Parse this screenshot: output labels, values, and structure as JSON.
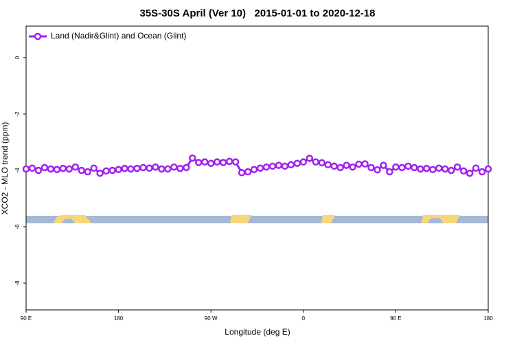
{
  "chart_data": {
    "type": "line",
    "title": "35S-30S April (Ver 10)   2015-01-01 to 2020-12-18",
    "xlabel": "Longitude (deg E)",
    "ylabel": "XCO2 - MLO trend (ppm)",
    "xlim": [
      90,
      540
    ],
    "ylim": [
      -8.95,
      1.12
    ],
    "xticks": [
      {
        "value": 90,
        "label": "90 E"
      },
      180,
      {
        "value": 270,
        "label": "90 W"
      },
      {
        "value": 360,
        "label": "0"
      },
      {
        "value": 450,
        "label": "90 E"
      },
      {
        "value": 540,
        "label": "180"
      }
    ],
    "yticks": [
      0,
      -2,
      -4,
      -6,
      -8
    ],
    "legend": "top-left",
    "x": [
      90,
      96,
      102,
      108,
      114,
      120,
      126,
      132,
      138,
      144,
      150,
      156,
      162,
      168,
      174,
      180,
      186,
      192,
      198,
      204,
      210,
      216,
      222,
      228,
      234,
      240,
      246,
      252,
      258,
      264,
      270,
      276,
      282,
      288,
      294,
      300,
      306,
      312,
      318,
      324,
      330,
      336,
      342,
      348,
      354,
      360,
      366,
      372,
      378,
      384,
      390,
      396,
      402,
      408,
      414,
      420,
      426,
      432,
      438,
      444,
      450,
      456,
      462,
      468,
      474,
      480,
      486,
      492,
      498,
      504,
      510,
      516,
      522,
      528,
      534,
      540
    ],
    "series": [
      {
        "name": "Land (Nadir&Glint) and Ocean (Glint)",
        "color": "#a020f0",
        "values": [
          -3.95,
          -3.92,
          -4.0,
          -3.9,
          -3.95,
          -3.97,
          -3.93,
          -3.95,
          -3.88,
          -4.0,
          -4.05,
          -3.92,
          -4.1,
          -4.02,
          -4.0,
          -3.97,
          -3.93,
          -3.95,
          -3.93,
          -3.9,
          -3.92,
          -3.88,
          -3.95,
          -3.95,
          -3.88,
          -3.93,
          -3.9,
          -3.56,
          -3.72,
          -3.7,
          -3.75,
          -3.7,
          -3.72,
          -3.68,
          -3.7,
          -4.08,
          -4.05,
          -3.97,
          -3.92,
          -3.88,
          -3.85,
          -3.82,
          -3.85,
          -3.8,
          -3.75,
          -3.7,
          -3.57,
          -3.7,
          -3.73,
          -3.8,
          -3.85,
          -3.9,
          -3.82,
          -3.88,
          -3.78,
          -3.77,
          -3.9,
          -3.98,
          -3.82,
          -4.05,
          -3.88,
          -3.9,
          -3.85,
          -3.9,
          -3.95,
          -3.93,
          -3.97,
          -3.92,
          -3.95,
          -4.0,
          -3.88,
          -4.02,
          -4.1,
          -3.92,
          -4.05,
          -3.95
        ]
      }
    ]
  }
}
